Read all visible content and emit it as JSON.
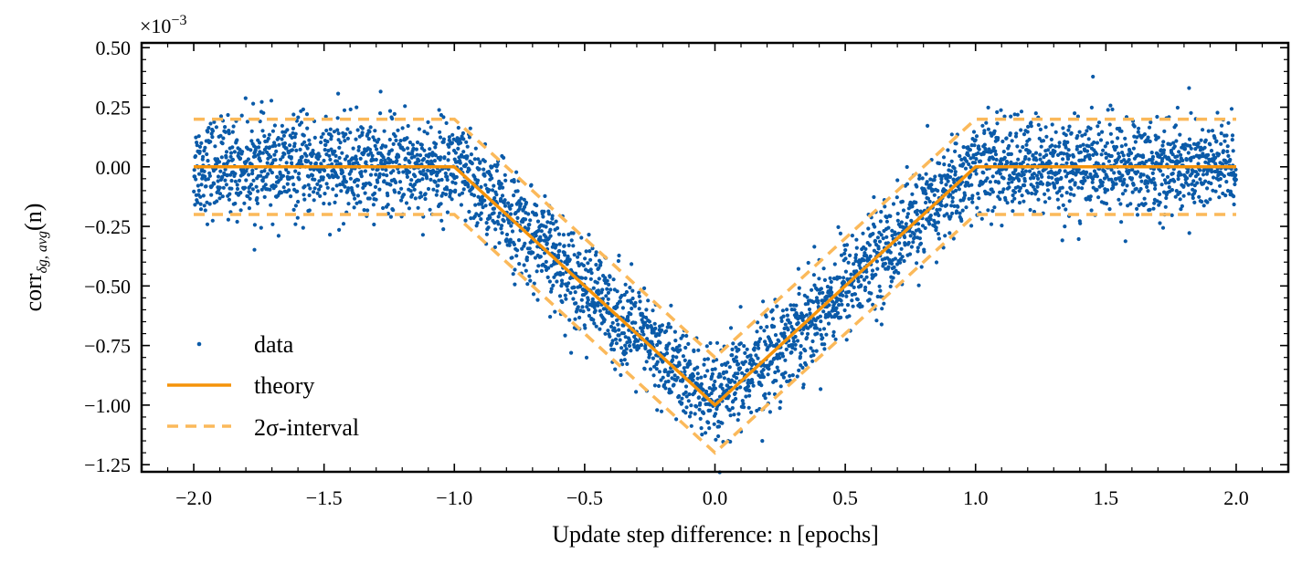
{
  "chart_data": {
    "type": "scatter",
    "title": "",
    "xlabel": "Update step difference: n [epochs]",
    "ylabel_base": "corr",
    "ylabel_subscript": "δg, avg",
    "ylabel_suffix": "(n)",
    "y_scale_factor": "×10",
    "y_scale_exponent": "−3",
    "xlim": [
      -2.2,
      2.2
    ],
    "ylim": [
      -1.28,
      0.52
    ],
    "x_ticks": [
      -2.0,
      -1.5,
      -1.0,
      -0.5,
      0.0,
      0.5,
      1.0,
      1.5,
      2.0
    ],
    "x_tick_labels": [
      "−2.0",
      "−1.5",
      "−1.0",
      "−0.5",
      "0.0",
      "0.5",
      "1.0",
      "1.5",
      "2.0"
    ],
    "y_ticks": [
      0.5,
      0.25,
      0.0,
      -0.25,
      -0.5,
      -0.75,
      -1.0,
      -1.25
    ],
    "y_tick_labels": [
      "0.50",
      "0.25",
      "0.00",
      "−0.25",
      "−0.50",
      "−0.75",
      "−1.00",
      "−1.25"
    ],
    "grid": false,
    "legend_position": "lower-left",
    "colors": {
      "data": "#0a5aa8",
      "theory": "#f5930a",
      "interval": "#fbb95a"
    },
    "series": [
      {
        "name": "data",
        "kind": "scatter",
        "count": 4000,
        "x_range": [
          -2.0,
          2.0
        ],
        "mean": "theory",
        "std": 0.1,
        "note": "noisy samples scattered around the theory curve"
      },
      {
        "name": "theory",
        "kind": "line",
        "x": [
          -2.0,
          -1.0,
          0.0,
          1.0,
          2.0
        ],
        "y": [
          0.0,
          0.0,
          -1.0,
          0.0,
          0.0
        ]
      },
      {
        "name": "2σ-interval",
        "kind": "dashed",
        "upper": {
          "x": [
            -2.0,
            -1.0,
            0.0,
            1.0,
            2.0
          ],
          "y": [
            0.2,
            0.2,
            -0.8,
            0.2,
            0.2
          ]
        },
        "lower": {
          "x": [
            -2.0,
            -1.0,
            0.0,
            1.0,
            2.0
          ],
          "y": [
            -0.2,
            -0.2,
            -1.2,
            -0.2,
            -0.2
          ]
        }
      }
    ],
    "legend": {
      "data": "data",
      "theory": "theory",
      "interval": "2σ-interval"
    }
  }
}
